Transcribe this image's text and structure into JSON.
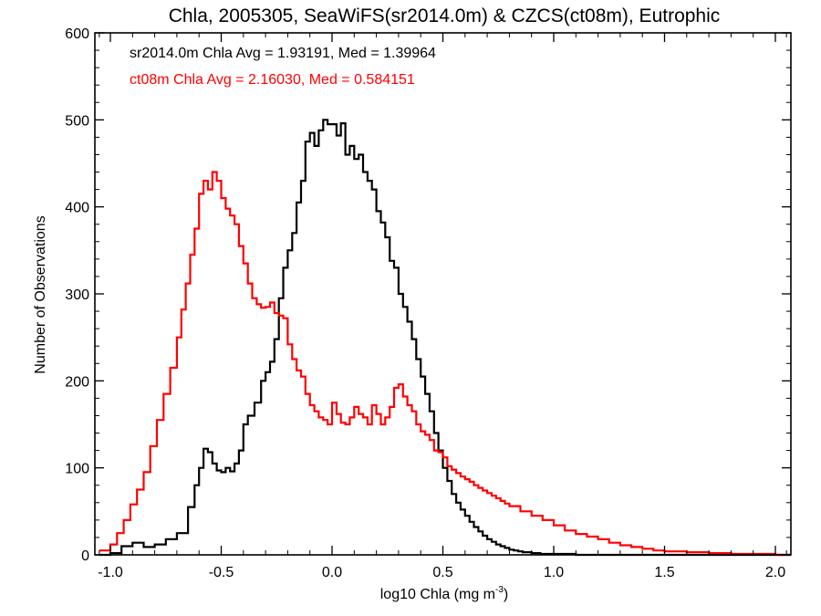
{
  "chart_data": {
    "type": "line",
    "title": "Chla, 2005305, SeaWiFS(sr2014.0m) & CZCS(ct08m), Eutrophic",
    "xlabel": "log10 Chla (mg m",
    "xlabel_sup": "-3",
    "xlabel_close": ")",
    "ylabel": "Number of Observations",
    "xlim": [
      -1.07,
      2.07
    ],
    "ylim": [
      0,
      600
    ],
    "x_ticks": [
      -1.0,
      -0.5,
      0.0,
      0.5,
      1.0,
      1.5,
      2.0
    ],
    "x_tick_labels": [
      "-1.0",
      "-0.5",
      "0.0",
      "0.5",
      "1.0",
      "1.5",
      "2.0"
    ],
    "y_ticks": [
      0,
      100,
      200,
      300,
      400,
      500,
      600
    ],
    "y_tick_labels": [
      "0",
      "100",
      "200",
      "300",
      "400",
      "500",
      "600"
    ],
    "step": true,
    "annotations": [
      {
        "text": "sr2014.0m Chla Avg = 1.93191, Med = 1.39964",
        "color": "#000000"
      },
      {
        "text": "ct08m Chla Avg = 2.16030, Med = 0.584151",
        "color": "#ff0000"
      }
    ],
    "series": [
      {
        "color": "#000000",
        "x": [
          -1.05,
          -1.0,
          -0.95,
          -0.9,
          -0.85,
          -0.8,
          -0.75,
          -0.7,
          -0.65,
          -0.62,
          -0.6,
          -0.58,
          -0.56,
          -0.54,
          -0.52,
          -0.5,
          -0.48,
          -0.46,
          -0.44,
          -0.42,
          -0.4,
          -0.38,
          -0.35,
          -0.32,
          -0.3,
          -0.28,
          -0.26,
          -0.24,
          -0.22,
          -0.2,
          -0.18,
          -0.16,
          -0.14,
          -0.12,
          -0.1,
          -0.08,
          -0.06,
          -0.04,
          -0.02,
          0.0,
          0.02,
          0.04,
          0.06,
          0.08,
          0.1,
          0.12,
          0.14,
          0.16,
          0.18,
          0.2,
          0.22,
          0.24,
          0.26,
          0.28,
          0.3,
          0.32,
          0.34,
          0.36,
          0.38,
          0.4,
          0.42,
          0.44,
          0.46,
          0.48,
          0.5,
          0.52,
          0.54,
          0.56,
          0.58,
          0.6,
          0.62,
          0.64,
          0.66,
          0.68,
          0.7,
          0.72,
          0.74,
          0.76,
          0.78,
          0.8,
          0.82,
          0.84,
          0.86,
          0.88,
          0.9,
          0.92,
          0.94,
          0.96,
          0.98,
          1.0,
          1.05,
          1.1,
          1.15,
          1.2,
          1.3,
          1.4,
          1.5,
          1.6,
          1.8,
          2.0,
          2.07
        ],
        "y": [
          0,
          2,
          10,
          14,
          9,
          12,
          18,
          25,
          55,
          80,
          100,
          122,
          118,
          105,
          97,
          95,
          100,
          96,
          105,
          120,
          150,
          160,
          175,
          200,
          210,
          222,
          248,
          295,
          330,
          350,
          370,
          405,
          430,
          475,
          485,
          470,
          488,
          500,
          495,
          495,
          482,
          496,
          460,
          470,
          455,
          460,
          440,
          430,
          420,
          395,
          382,
          365,
          338,
          330,
          300,
          285,
          268,
          248,
          225,
          205,
          185,
          165,
          140,
          120,
          100,
          85,
          70,
          60,
          52,
          45,
          38,
          32,
          27,
          22,
          18,
          15,
          12,
          10,
          8,
          6,
          5,
          4,
          3,
          3,
          2,
          2,
          1,
          1,
          1,
          1,
          1,
          0,
          0,
          0,
          0,
          0,
          0,
          0,
          0,
          0,
          0
        ]
      },
      {
        "color": "#ff0000",
        "x": [
          -1.05,
          -1.0,
          -0.97,
          -0.94,
          -0.91,
          -0.88,
          -0.85,
          -0.82,
          -0.79,
          -0.76,
          -0.73,
          -0.7,
          -0.68,
          -0.66,
          -0.64,
          -0.62,
          -0.6,
          -0.58,
          -0.56,
          -0.54,
          -0.52,
          -0.5,
          -0.48,
          -0.46,
          -0.44,
          -0.42,
          -0.4,
          -0.38,
          -0.36,
          -0.34,
          -0.32,
          -0.3,
          -0.28,
          -0.26,
          -0.24,
          -0.22,
          -0.2,
          -0.18,
          -0.16,
          -0.14,
          -0.12,
          -0.1,
          -0.08,
          -0.06,
          -0.04,
          -0.02,
          0.0,
          0.02,
          0.04,
          0.06,
          0.08,
          0.1,
          0.12,
          0.14,
          0.16,
          0.18,
          0.2,
          0.22,
          0.24,
          0.26,
          0.28,
          0.3,
          0.32,
          0.34,
          0.36,
          0.38,
          0.4,
          0.42,
          0.44,
          0.46,
          0.48,
          0.5,
          0.52,
          0.54,
          0.56,
          0.58,
          0.6,
          0.62,
          0.64,
          0.66,
          0.68,
          0.7,
          0.72,
          0.74,
          0.76,
          0.78,
          0.8,
          0.85,
          0.9,
          0.95,
          1.0,
          1.05,
          1.1,
          1.15,
          1.2,
          1.25,
          1.3,
          1.35,
          1.4,
          1.45,
          1.5,
          1.6,
          1.7,
          1.8,
          1.9,
          2.0,
          2.07
        ],
        "y": [
          5,
          12,
          25,
          40,
          58,
          75,
          95,
          125,
          155,
          185,
          215,
          250,
          282,
          312,
          345,
          375,
          415,
          430,
          420,
          440,
          430,
          410,
          398,
          390,
          380,
          355,
          335,
          312,
          295,
          288,
          284,
          285,
          290,
          278,
          275,
          272,
          242,
          225,
          212,
          205,
          185,
          172,
          165,
          158,
          155,
          150,
          175,
          162,
          152,
          150,
          158,
          170,
          162,
          158,
          150,
          172,
          162,
          150,
          158,
          170,
          192,
          196,
          182,
          172,
          165,
          150,
          142,
          138,
          132,
          120,
          118,
          112,
          102,
          98,
          94,
          90,
          87,
          84,
          80,
          77,
          74,
          71,
          68,
          65,
          62,
          59,
          56,
          50,
          45,
          40,
          34,
          28,
          24,
          21,
          18,
          14,
          11,
          9,
          7,
          5,
          4,
          3,
          2,
          1,
          1,
          0,
          0
        ]
      }
    ]
  }
}
